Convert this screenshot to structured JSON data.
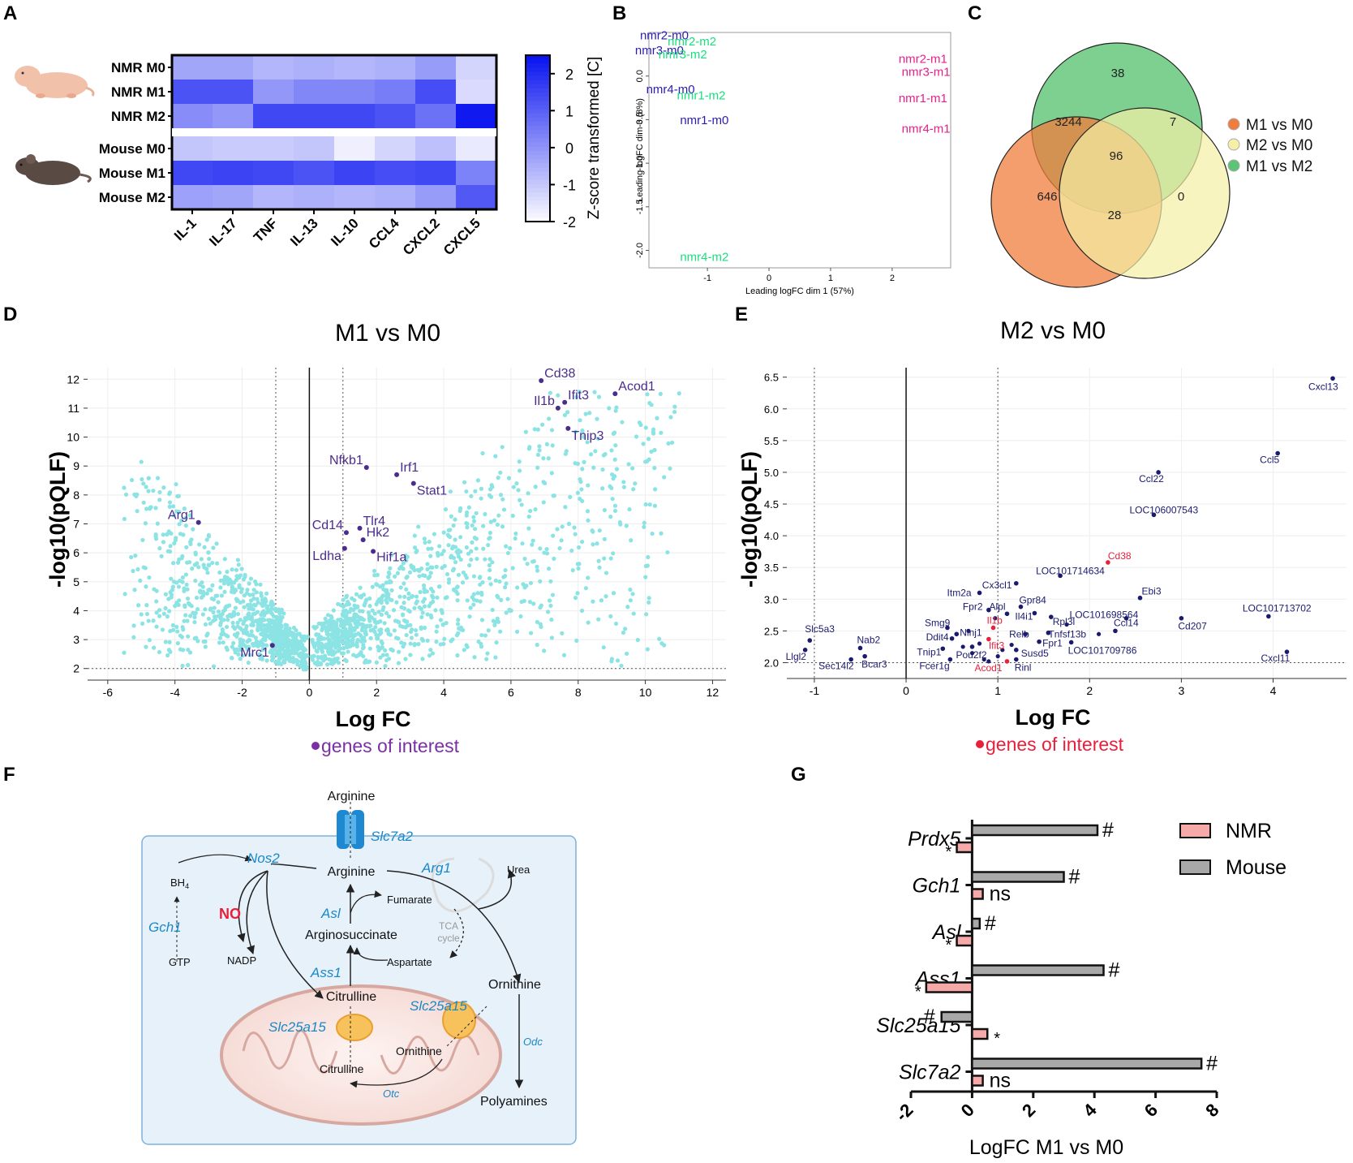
{
  "panel_labels": [
    "A",
    "B",
    "C",
    "D",
    "E",
    "F",
    "G"
  ],
  "chart_data": [
    {
      "id": "A",
      "type": "heatmap",
      "rows": [
        "NMR M0",
        "NMR M1",
        "NMR M2",
        "Mouse M0",
        "Mouse M1",
        "Mouse M2"
      ],
      "columns": [
        "IL-1",
        "IL-17",
        "TNF",
        "IL-13",
        "IL-10",
        "CCL4",
        "CXCL2",
        "CXCL5"
      ],
      "values": [
        [
          -0.3,
          -0.3,
          -0.6,
          -0.5,
          -0.6,
          -0.5,
          -0.1,
          -1.2
        ],
        [
          1.3,
          1.3,
          0.0,
          0.3,
          0.3,
          0.5,
          1.4,
          -1.3
        ],
        [
          0.2,
          0.0,
          1.5,
          1.5,
          1.5,
          1.3,
          0.7,
          2.4
        ],
        [
          -0.9,
          -1.0,
          -1.0,
          -0.9,
          -1.7,
          -1.2,
          -0.8,
          -1.6
        ],
        [
          1.5,
          1.6,
          1.5,
          1.3,
          1.6,
          1.4,
          1.5,
          0.4
        ],
        [
          -0.2,
          -0.3,
          -0.6,
          -0.5,
          -0.6,
          -0.5,
          -0.1,
          1.2
        ]
      ],
      "colorbar": {
        "label": "Z-score transformed [C]",
        "ticks": [
          "2",
          "1",
          "0",
          "-1",
          "-2"
        ],
        "range": [
          -2,
          2.5
        ],
        "low_color": "#ffffff",
        "high_color": "#0a14f0"
      }
    },
    {
      "id": "B",
      "type": "scatter",
      "xlabel": "Leading logFC dim 1 (57%)",
      "ylabel": "Leading logFC dim 3 (8%)",
      "xlim": [
        -1.95,
        2.95
      ],
      "ylim": [
        -2.2,
        0.5
      ],
      "xticks": [
        "-1",
        "0",
        "1",
        "2"
      ],
      "yticks": [
        "0.0",
        "-0.5",
        "-1.0",
        "-1.5",
        "-2.0"
      ],
      "colors": {
        "m0": "#2a1bb5",
        "m1": "#e8208c",
        "m2": "#18e07c"
      },
      "points": [
        {
          "label": "nmr2-m0",
          "x": -1.7,
          "y": 0.42,
          "group": "m0"
        },
        {
          "label": "nmr3-m0",
          "x": -1.78,
          "y": 0.25,
          "group": "m0"
        },
        {
          "label": "nmr4-m0",
          "x": -1.6,
          "y": -0.2,
          "group": "m0"
        },
        {
          "label": "nmr1-m0",
          "x": -1.05,
          "y": -0.55,
          "group": "m0"
        },
        {
          "label": "nmr2-m2",
          "x": -1.25,
          "y": 0.35,
          "group": "m2"
        },
        {
          "label": "nmr3-m2",
          "x": -1.4,
          "y": 0.2,
          "group": "m2"
        },
        {
          "label": "nmr1-m2",
          "x": -1.1,
          "y": -0.27,
          "group": "m2"
        },
        {
          "label": "nmr4-m2",
          "x": -1.05,
          "y": -2.12,
          "group": "m2"
        },
        {
          "label": "nmr2-m1",
          "x": 2.5,
          "y": 0.15,
          "group": "m1"
        },
        {
          "label": "nmr3-m1",
          "x": 2.55,
          "y": 0.0,
          "group": "m1"
        },
        {
          "label": "nmr1-m1",
          "x": 2.5,
          "y": -0.3,
          "group": "m1"
        },
        {
          "label": "nmr4-m1",
          "x": 2.55,
          "y": -0.65,
          "group": "m1"
        }
      ]
    },
    {
      "id": "C",
      "type": "venn",
      "sets": [
        {
          "name": "M1 vs M0",
          "color": "#f07d3c"
        },
        {
          "name": "M2 vs M0",
          "color": "#f5f0a5"
        },
        {
          "name": "M1 vs M2",
          "color": "#5cc474"
        }
      ],
      "counts": {
        "only_M1vsM2": "38",
        "M1vsM0_M1vsM2": "3244",
        "M2vsM0_M1vsM2": "7",
        "all": "96",
        "only_M1vsM0": "646",
        "only_M2vsM0": "0",
        "M1vsM0_M2vsM0": "28"
      }
    },
    {
      "id": "D",
      "type": "scatter",
      "title": "M1 vs M0",
      "xlabel": "Log FC",
      "ylabel": "-log10(pQLF)",
      "xlim": [
        -6.6,
        12.4
      ],
      "ylim": [
        1.6,
        12.4
      ],
      "xticks": [
        "-6",
        "-4",
        "-2",
        "0",
        "2",
        "4",
        "6",
        "8",
        "10",
        "12"
      ],
      "yticks": [
        "2",
        "3",
        "4",
        "5",
        "6",
        "7",
        "8",
        "9",
        "10",
        "11",
        "12"
      ],
      "legend": "genes of interest",
      "point_color": "#8ce3e3",
      "highlight_color": "#4b2c8c",
      "genes": [
        {
          "label": "Cd38",
          "x": 6.9,
          "y": 11.95
        },
        {
          "label": "Acod1",
          "x": 9.1,
          "y": 11.5
        },
        {
          "label": "Ifit3",
          "x": 7.6,
          "y": 11.2
        },
        {
          "label": "Il1b",
          "x": 7.4,
          "y": 11.0
        },
        {
          "label": "Tnip3",
          "x": 7.7,
          "y": 10.3
        },
        {
          "label": "Nfkb1",
          "x": 1.7,
          "y": 8.95
        },
        {
          "label": "Irf1",
          "x": 2.6,
          "y": 8.7
        },
        {
          "label": "Stat1",
          "x": 3.1,
          "y": 8.4
        },
        {
          "label": "Arg1",
          "x": -3.3,
          "y": 7.05
        },
        {
          "label": "Tlr4",
          "x": 1.5,
          "y": 6.85
        },
        {
          "label": "Cd14",
          "x": 1.1,
          "y": 6.7
        },
        {
          "label": "Hk2",
          "x": 1.6,
          "y": 6.45
        },
        {
          "label": "Ldha",
          "x": 1.05,
          "y": 6.15
        },
        {
          "label": "Hif1a",
          "x": 1.9,
          "y": 6.05
        },
        {
          "label": "Mrc1",
          "x": -1.1,
          "y": 2.8
        }
      ]
    },
    {
      "id": "E",
      "type": "scatter",
      "title": "M2 vs M0",
      "xlabel": "Log FC",
      "ylabel": "-log10(pQLF)",
      "xlim": [
        -1.3,
        4.8
      ],
      "ylim": [
        1.75,
        6.65
      ],
      "xticks": [
        "-1",
        "0",
        "1",
        "2",
        "3",
        "4"
      ],
      "yticks": [
        "2.0",
        "2.5",
        "3.0",
        "3.5",
        "4.0",
        "4.5",
        "5.0",
        "5.5",
        "6.0",
        "6.5"
      ],
      "legend": "genes of interest",
      "point_color": "#1a1a6e",
      "highlight_color": "#e8203c",
      "genes": [
        {
          "label": "Cxcl13",
          "x": 4.65,
          "y": 6.48,
          "dx": -30,
          "dy": 14,
          "red": false
        },
        {
          "label": "Ccl5",
          "x": 4.05,
          "y": 5.3,
          "dx": -22,
          "dy": 12,
          "red": false
        },
        {
          "label": "Ccl22",
          "x": 2.75,
          "y": 5.0,
          "dx": -24,
          "dy": 12,
          "red": false
        },
        {
          "label": "LOC106007543",
          "x": 2.7,
          "y": 4.33,
          "dx": -30,
          "dy": -2,
          "red": false
        },
        {
          "label": "Cd38",
          "x": 2.2,
          "y": 3.58,
          "dx": 0,
          "dy": -4,
          "red": true
        },
        {
          "label": "LOC101714634",
          "x": 1.68,
          "y": 3.37,
          "dx": -30,
          "dy": -2,
          "red": false
        },
        {
          "label": "Ebi3",
          "x": 2.55,
          "y": 3.02,
          "dx": 2,
          "dy": -4,
          "red": false
        },
        {
          "label": "Cx3cl1",
          "x": 1.2,
          "y": 3.25,
          "dx": -42,
          "dy": 6,
          "red": false
        },
        {
          "label": "Itm2a",
          "x": 0.8,
          "y": 3.1,
          "dx": -40,
          "dy": 4,
          "red": false
        },
        {
          "label": "Gpr84",
          "x": 1.25,
          "y": 2.88,
          "dx": -2,
          "dy": -4,
          "red": false
        },
        {
          "label": "Fpr2",
          "x": 0.9,
          "y": 2.83,
          "dx": -32,
          "dy": 0,
          "red": false
        },
        {
          "label": "Alpl",
          "x": 1.1,
          "y": 2.77,
          "dx": -22,
          "dy": -5,
          "red": false
        },
        {
          "label": "LOC101698564",
          "x": 2.4,
          "y": 2.7,
          "dx": -70,
          "dy": 0,
          "red": false
        },
        {
          "label": "LOC101713702",
          "x": 3.95,
          "y": 2.73,
          "dx": -32,
          "dy": -6,
          "red": false
        },
        {
          "label": "Il4i1",
          "x": 1.4,
          "y": 2.78,
          "dx": -24,
          "dy": 8,
          "red": false
        },
        {
          "label": "Rpl3l",
          "x": 1.58,
          "y": 2.72,
          "dx": 2,
          "dy": 10,
          "red": false
        },
        {
          "label": "Cd207",
          "x": 3.0,
          "y": 2.7,
          "dx": -4,
          "dy": 14,
          "red": false
        },
        {
          "label": "Smg9",
          "x": 0.45,
          "y": 2.55,
          "dx": -28,
          "dy": -2,
          "red": false
        },
        {
          "label": "Il1b",
          "x": 0.95,
          "y": 2.55,
          "dx": -8,
          "dy": -5,
          "red": true
        },
        {
          "label": "Ccl14",
          "x": 2.28,
          "y": 2.5,
          "dx": -2,
          "dy": -6,
          "red": false
        },
        {
          "label": "Ninj1",
          "x": 0.55,
          "y": 2.45,
          "dx": 4,
          "dy": 2,
          "red": false
        },
        {
          "label": "Ddit4",
          "x": 0.5,
          "y": 2.38,
          "dx": -32,
          "dy": 2,
          "red": false
        },
        {
          "label": "Relb",
          "x": 1.3,
          "y": 2.45,
          "dx": -20,
          "dy": 4,
          "red": false
        },
        {
          "label": "Tnfsf13b",
          "x": 1.55,
          "y": 2.47,
          "dx": 0,
          "dy": 6,
          "red": false
        },
        {
          "label": "Slc5a3",
          "x": -1.05,
          "y": 2.35,
          "dx": -6,
          "dy": -10,
          "red": false
        },
        {
          "label": "Ifit3",
          "x": 0.9,
          "y": 2.37,
          "dx": 0,
          "dy": 12,
          "red": true
        },
        {
          "label": "Fpr1",
          "x": 1.45,
          "y": 2.33,
          "dx": 4,
          "dy": 6,
          "red": false
        },
        {
          "label": "LOC101709786",
          "x": 1.8,
          "y": 2.32,
          "dx": -4,
          "dy": 14,
          "red": false
        },
        {
          "label": "Nab2",
          "x": -0.5,
          "y": 2.23,
          "dx": -4,
          "dy": -6,
          "red": false
        },
        {
          "label": "Llgl2",
          "x": -1.1,
          "y": 2.2,
          "dx": -24,
          "dy": 12,
          "red": false
        },
        {
          "label": "Tnip1",
          "x": 0.4,
          "y": 2.22,
          "dx": -32,
          "dy": 8,
          "red": false
        },
        {
          "label": "Pou2f2",
          "x": 0.72,
          "y": 2.25,
          "dx": -20,
          "dy": 14,
          "red": false
        },
        {
          "label": "Susd5",
          "x": 1.2,
          "y": 2.2,
          "dx": 6,
          "dy": 8,
          "red": false
        },
        {
          "label": "Bcar3",
          "x": -0.45,
          "y": 2.1,
          "dx": -4,
          "dy": 14,
          "red": false
        },
        {
          "label": "Sec14l2",
          "x": -0.6,
          "y": 2.05,
          "dx": -40,
          "dy": 12,
          "red": false
        },
        {
          "label": "Fcer1g",
          "x": 0.48,
          "y": 2.05,
          "dx": -38,
          "dy": 12,
          "red": false
        },
        {
          "label": "Acod1",
          "x": 1.1,
          "y": 2.02,
          "dx": -40,
          "dy": 12,
          "red": true
        },
        {
          "label": "Rinl",
          "x": 1.2,
          "y": 2.05,
          "dx": -2,
          "dy": 14,
          "red": false
        },
        {
          "label": "Cxcl11",
          "x": 4.15,
          "y": 2.17,
          "dx": -32,
          "dy": 12,
          "red": false
        }
      ],
      "other_points": [
        [
          0.62,
          2.25
        ],
        [
          0.8,
          2.3
        ],
        [
          0.85,
          2.05
        ],
        [
          1.0,
          2.1
        ],
        [
          1.05,
          2.2
        ],
        [
          1.15,
          2.28
        ],
        [
          0.68,
          2.5
        ],
        [
          0.97,
          2.7
        ],
        [
          1.75,
          2.6
        ],
        [
          2.1,
          2.45
        ],
        [
          0.72,
          2.15
        ],
        [
          0.9,
          2.02
        ]
      ]
    },
    {
      "id": "G",
      "type": "bar",
      "orientation": "horizontal",
      "categories": [
        "Prdx5",
        "Gch1",
        "Asl",
        "Ass1",
        "Slc25a15",
        "Slc7a2"
      ],
      "series": [
        {
          "name": "NMR",
          "values": [
            -0.5,
            0.35,
            -0.5,
            -1.5,
            0.5,
            0.35
          ],
          "marks": [
            "*",
            "ns",
            "*",
            "*",
            "*",
            "ns"
          ],
          "color": "#f6a9a9"
        },
        {
          "name": "Mouse",
          "values": [
            4.1,
            3.0,
            0.25,
            4.3,
            -1.0,
            7.5
          ],
          "marks": [
            "#",
            "#",
            "#",
            "#",
            "#",
            "#"
          ],
          "color": "#a8a8a8"
        }
      ],
      "xlabel": "LogFC M1 vs M0",
      "xlim": [
        -2,
        8
      ],
      "xticks": [
        "-2",
        "0",
        "2",
        "4",
        "6",
        "8"
      ]
    }
  ],
  "panelF": {
    "nodes": {
      "arginine_top": "Arginine",
      "slc7a2": "Slc7a2",
      "nos2": "Nos2",
      "arg1": "Arg1",
      "arginine": "Arginine",
      "urea": "Urea",
      "bh4": "BH",
      "bh4_sub": "4",
      "no": "NO",
      "asl": "Asl",
      "fumarate": "Fumarate",
      "tca": "TCA",
      "cycle": "cycle",
      "gch1": "Gch1",
      "argininosuccinate": "Arginosuccinate",
      "aspartate": "Aspartate",
      "nadp": "NADP",
      "gtp": "GTP",
      "ass1": "Ass1",
      "ornithine": "Ornithine",
      "citrulline": "Citrulline",
      "slc25a15_left": "Slc25a15",
      "slc25a15_right": "Slc25a15",
      "ornithine_mito": "Ornithine",
      "citrulline_mito": "Citrulline",
      "otc": "Otc",
      "odc": "Odc",
      "polyamines": "Polyamines"
    }
  }
}
